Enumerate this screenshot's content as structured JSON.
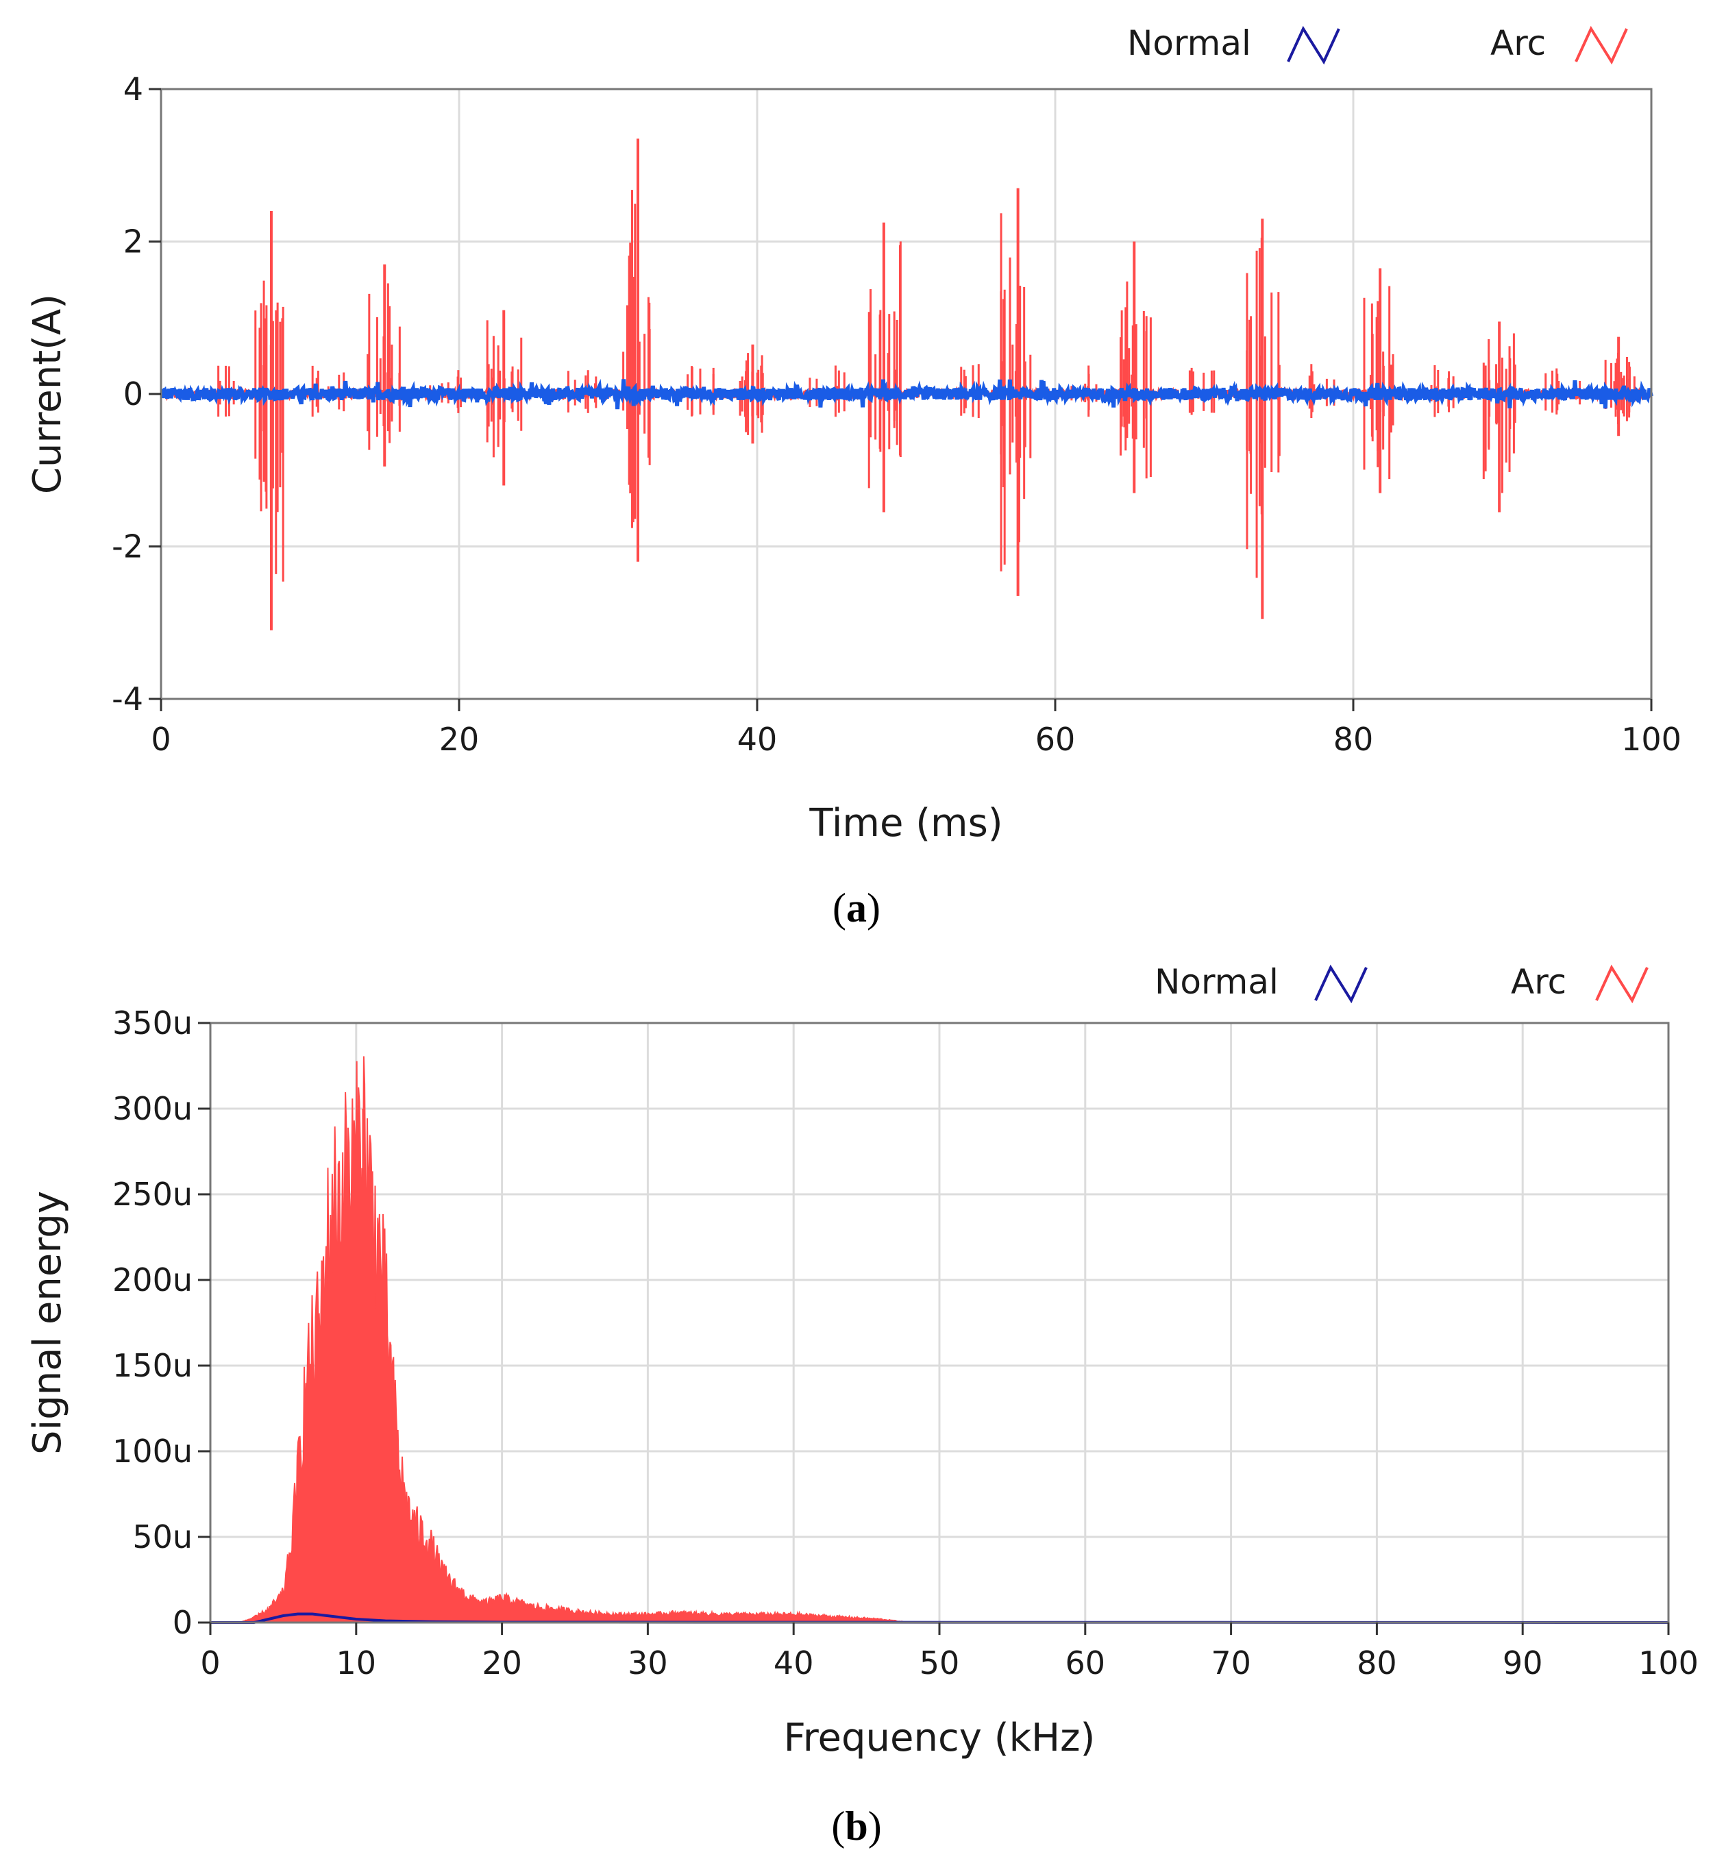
{
  "chart_data": [
    {
      "type": "line",
      "panel_label_open": "(",
      "panel_label": "a",
      "panel_label_close": ")",
      "xlabel": "Time (ms)",
      "ylabel": "Current(A)",
      "xlim": [
        0,
        100
      ],
      "ylim": [
        -4,
        4
      ],
      "xticks": [
        0,
        20,
        40,
        60,
        80,
        100
      ],
      "xtick_labels": [
        "0",
        "20",
        "40",
        "60",
        "80",
        "100"
      ],
      "yticks": [
        4,
        2,
        0,
        -2,
        -4
      ],
      "ytick_labels": [
        "4",
        "2",
        "0",
        "-2",
        "-4"
      ],
      "legend": [
        {
          "name": "Normal",
          "color": "#1a1aa0"
        },
        {
          "name": "Arc",
          "color": "#ff4a4a"
        }
      ],
      "series": [
        {
          "name": "Normal",
          "color": "#1a5ce6",
          "noise_amplitude": 0.08
        },
        {
          "name": "Arc",
          "color": "#ff4a4a",
          "bursts": [
            {
              "t": 7.4,
              "max": 2.4,
              "min": -3.1
            },
            {
              "t": 15.0,
              "max": 1.7,
              "min": -0.95
            },
            {
              "t": 23.0,
              "max": 1.1,
              "min": -1.2
            },
            {
              "t": 32.0,
              "max": 3.35,
              "min": -2.2
            },
            {
              "t": 39.7,
              "max": 0.65,
              "min": -0.65
            },
            {
              "t": 48.5,
              "max": 2.25,
              "min": -1.55
            },
            {
              "t": 57.5,
              "max": 2.7,
              "min": -2.65
            },
            {
              "t": 65.3,
              "max": 2.0,
              "min": -1.3
            },
            {
              "t": 73.9,
              "max": 2.3,
              "min": -2.95
            },
            {
              "t": 81.8,
              "max": 1.65,
              "min": -1.3
            },
            {
              "t": 89.8,
              "max": 0.95,
              "min": -1.55
            },
            {
              "t": 97.8,
              "max": 0.75,
              "min": -0.55
            }
          ]
        }
      ]
    },
    {
      "type": "area",
      "panel_label_open": "(",
      "panel_label": "b",
      "panel_label_close": ")",
      "xlabel": "Frequency (kHz)",
      "ylabel": "Signal energy",
      "xlim": [
        0,
        100
      ],
      "ylim": [
        0,
        350
      ],
      "xticks": [
        0,
        10,
        20,
        30,
        40,
        50,
        60,
        70,
        80,
        90,
        100
      ],
      "xtick_labels": [
        "0",
        "10",
        "20",
        "30",
        "40",
        "50",
        "60",
        "70",
        "80",
        "90",
        "100"
      ],
      "yticks": [
        350,
        300,
        250,
        200,
        150,
        100,
        50,
        0
      ],
      "ytick_labels": [
        "350u",
        "300u",
        "250u",
        "200u",
        "150u",
        "100u",
        "50u",
        "0"
      ],
      "legend": [
        {
          "name": "Normal",
          "color": "#1a1aa0"
        },
        {
          "name": "Arc",
          "color": "#ff4a4a"
        }
      ],
      "series": [
        {
          "name": "Arc",
          "color": "#ff4a4a",
          "x": [
            2,
            3,
            4,
            5,
            5.5,
            6,
            6.5,
            7,
            7.5,
            8,
            8.5,
            9,
            9.5,
            10,
            10.5,
            11,
            11.5,
            12,
            12.5,
            13,
            13.5,
            14,
            14.5,
            15,
            16,
            17,
            18,
            19,
            20,
            22,
            24,
            26,
            28,
            30,
            32,
            35,
            38,
            40,
            42,
            44,
            46,
            47,
            48
          ],
          "y": [
            0,
            3,
            8,
            18,
            45,
            90,
            140,
            165,
            185,
            230,
            255,
            265,
            275,
            280,
            300,
            260,
            230,
            195,
            140,
            95,
            70,
            60,
            55,
            50,
            30,
            20,
            14,
            12,
            15,
            10,
            8,
            6,
            5,
            5,
            6,
            5,
            5,
            5,
            4,
            3,
            2,
            1,
            0
          ]
        },
        {
          "name": "Normal",
          "color": "#1a1aa0",
          "x": [
            0,
            3,
            4,
            5,
            6,
            7,
            8,
            9,
            10,
            12,
            15,
            20,
            100
          ],
          "y": [
            0,
            0,
            2,
            4,
            5,
            5,
            4,
            3,
            2,
            1,
            0.5,
            0.2,
            0
          ]
        }
      ]
    }
  ]
}
